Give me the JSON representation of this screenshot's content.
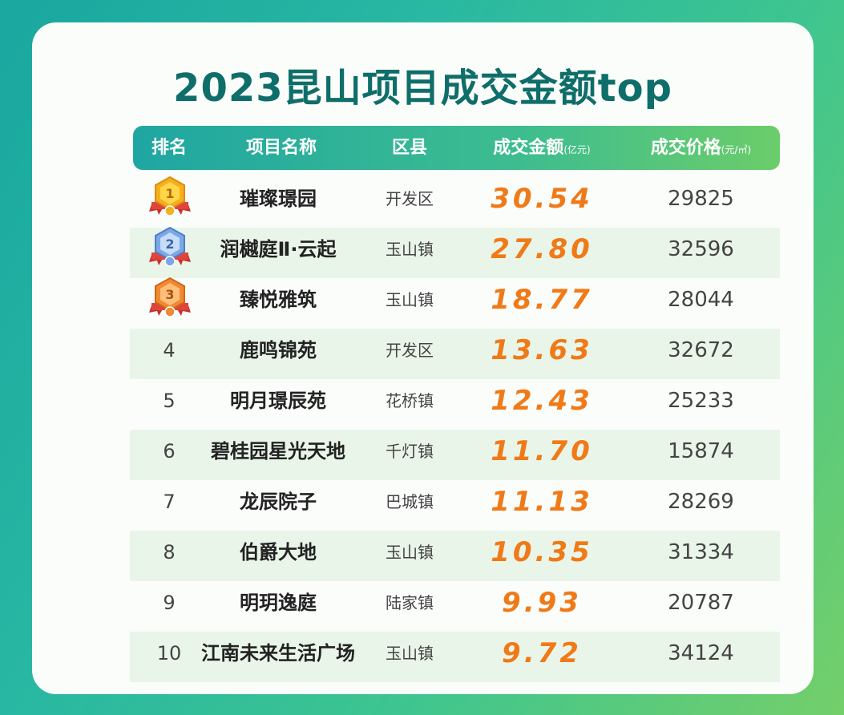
{
  "title": "2023昆山项目成交金额top",
  "header": {
    "rank": "排名",
    "name": "项目名称",
    "district": "区县",
    "amount": "成交金额",
    "amount_unit": "(亿元)",
    "price": "成交价格",
    "price_unit": "(元/㎡)"
  },
  "colors": {
    "accent": "#0f6e6a",
    "amount": "#f07a17",
    "gold": "#f2b11c",
    "silver": "#7aa8e6",
    "bronze": "#f08a32"
  },
  "rows": [
    {
      "rank": "1",
      "name": "璀璨璟园",
      "district": "开发区",
      "amount": "30.54",
      "price": "29825",
      "medal": "gold-medal-icon"
    },
    {
      "rank": "2",
      "name": "润樾庭Ⅱ·云起",
      "district": "玉山镇",
      "amount": "27.80",
      "price": "32596",
      "medal": "silver-medal-icon"
    },
    {
      "rank": "3",
      "name": "臻悦雅筑",
      "district": "玉山镇",
      "amount": "18.77",
      "price": "28044",
      "medal": "bronze-medal-icon"
    },
    {
      "rank": "4",
      "name": "鹿鸣锦苑",
      "district": "开发区",
      "amount": "13.63",
      "price": "32672"
    },
    {
      "rank": "5",
      "name": "明月璟辰苑",
      "district": "花桥镇",
      "amount": "12.43",
      "price": "25233"
    },
    {
      "rank": "6",
      "name": "碧桂园星光天地",
      "district": "千灯镇",
      "amount": "11.70",
      "price": "15874"
    },
    {
      "rank": "7",
      "name": "龙辰院子",
      "district": "巴城镇",
      "amount": "11.13",
      "price": "28269"
    },
    {
      "rank": "8",
      "name": "伯爵大地",
      "district": "玉山镇",
      "amount": "10.35",
      "price": "31334"
    },
    {
      "rank": "9",
      "name": "明玥逸庭",
      "district": "陆家镇",
      "amount": "9.93",
      "price": "20787"
    },
    {
      "rank": "10",
      "name": "江南未来生活广场",
      "district": "玉山镇",
      "amount": "9.72",
      "price": "34124"
    }
  ]
}
